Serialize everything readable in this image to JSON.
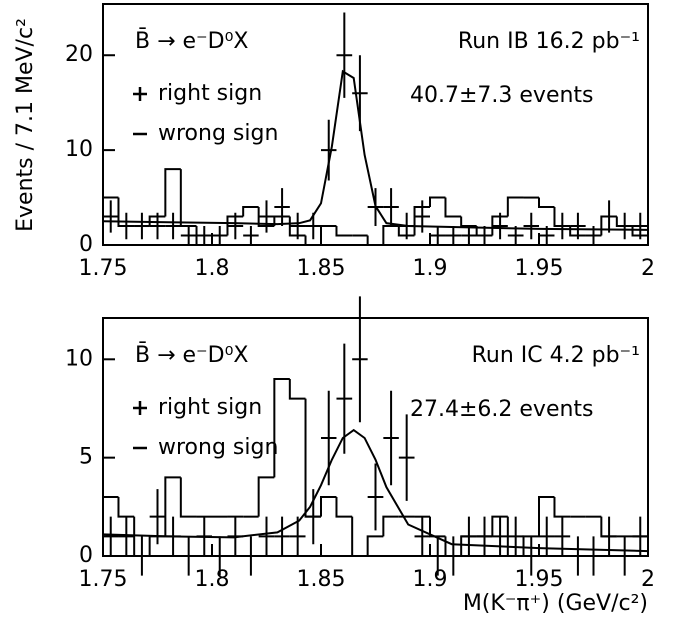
{
  "chart_data": [
    {
      "type": "histogram",
      "y_label": "Events / 7.1 MeV/c²",
      "annotations": [
        "B̄ → e⁻D⁰X",
        "Run IB 16.2 pb⁻¹",
        "40.7±7.3 events"
      ],
      "bins": [
        1.75,
        1.7571,
        1.7643,
        1.7714,
        1.7786,
        1.7857,
        1.7929,
        1.8,
        1.8071,
        1.8143,
        1.8214,
        1.8286,
        1.8357,
        1.8429,
        1.85,
        1.8571,
        1.8643,
        1.8714,
        1.8786,
        1.8857,
        1.8929,
        1.9,
        1.9071,
        1.9143,
        1.9214,
        1.9286,
        1.9357,
        1.9429,
        1.95,
        1.9571,
        1.9643,
        1.9714,
        1.9786,
        1.9857,
        1.9929,
        2.0
      ],
      "series": [
        {
          "name": "right sign",
          "color": "#000000",
          "style": "points",
          "values": [
            3,
            2,
            2,
            2,
            2,
            1,
            1,
            1,
            2,
            1,
            3,
            4,
            2,
            2,
            10,
            20,
            16,
            4,
            4,
            2,
            3,
            1,
            1,
            1,
            1,
            2,
            1,
            2,
            1,
            2,
            2,
            1,
            3,
            2,
            2
          ],
          "errors": [
            1.7,
            1.4,
            1.4,
            1.4,
            1.4,
            1,
            1,
            1,
            1.4,
            1,
            1.7,
            2,
            1.4,
            1.4,
            3.2,
            4.5,
            4,
            2,
            2,
            1.4,
            1.7,
            1,
            1,
            1,
            1,
            1.4,
            1,
            1.4,
            1,
            1.4,
            1.4,
            1,
            1.7,
            1.4,
            1.4
          ]
        },
        {
          "name": "wrong sign",
          "color": "#000000",
          "style": "step",
          "values": [
            5,
            2,
            2,
            3,
            8,
            2,
            0,
            1,
            3,
            4,
            2,
            3,
            1,
            0,
            2,
            1,
            1,
            0,
            2,
            1,
            4,
            5,
            3,
            2,
            1,
            3,
            5,
            5,
            4,
            2,
            1,
            1,
            3,
            2,
            1
          ]
        }
      ],
      "fit": {
        "x": [
          1.75,
          1.78,
          1.81,
          1.83,
          1.84,
          1.845,
          1.85,
          1.855,
          1.86,
          1.865,
          1.87,
          1.875,
          1.88,
          1.89,
          1.91,
          1.95,
          2.0
        ],
        "y": [
          2.5,
          2.4,
          2.3,
          2.2,
          2.3,
          2.6,
          4.4,
          10.4,
          18.3,
          17.6,
          9.5,
          4.1,
          2.3,
          2.0,
          1.9,
          1.7,
          1.6
        ]
      },
      "xlim": [
        1.75,
        2
      ],
      "xticks": [
        1.75,
        1.8,
        1.85,
        1.9,
        1.95,
        2
      ],
      "ylim": [
        0,
        25.4
      ],
      "yticks": [
        0,
        10,
        20
      ]
    },
    {
      "type": "histogram",
      "x_label": "M(K⁻π⁺) (GeV/c²)",
      "annotations": [
        "B̄ → e⁻D⁰X",
        "Run IC 4.2 pb⁻¹",
        "27.4±6.2 events"
      ],
      "bins": [
        1.75,
        1.7571,
        1.7643,
        1.7714,
        1.7786,
        1.7857,
        1.7929,
        1.8,
        1.8071,
        1.8143,
        1.8214,
        1.8286,
        1.8357,
        1.8429,
        1.85,
        1.8571,
        1.8643,
        1.8714,
        1.8786,
        1.8857,
        1.8929,
        1.9,
        1.9071,
        1.9143,
        1.9214,
        1.9286,
        1.9357,
        1.9429,
        1.95,
        1.9571,
        1.9643,
        1.9714,
        1.9786,
        1.9857,
        1.9929,
        2.0
      ],
      "series": [
        {
          "name": "right sign",
          "color": "#000000",
          "style": "points",
          "values": [
            1,
            1,
            0,
            2,
            1,
            0,
            1,
            0,
            1,
            0,
            1,
            1,
            1,
            2,
            6,
            8,
            10,
            3,
            6,
            5,
            1,
            0,
            0,
            1,
            1,
            1,
            1,
            0,
            1,
            1,
            0,
            0,
            1,
            0,
            1
          ],
          "errors": [
            1,
            1,
            1,
            1.4,
            1,
            1,
            1,
            1,
            1,
            1,
            1,
            1,
            1,
            1.4,
            2.4,
            2.8,
            3.2,
            1.7,
            2.4,
            2.2,
            1,
            1,
            1,
            1,
            1,
            1,
            1,
            1,
            1,
            1,
            1,
            1,
            1,
            1,
            1
          ]
        },
        {
          "name": "wrong sign",
          "color": "#000000",
          "style": "step",
          "values": [
            3,
            2,
            0,
            1,
            4,
            2,
            2,
            2,
            2,
            2,
            4,
            9,
            8,
            2,
            3,
            2,
            0,
            1,
            2,
            2,
            2,
            1,
            0,
            1,
            1,
            2,
            0,
            1,
            3,
            2,
            2,
            2,
            1,
            1,
            1
          ]
        }
      ],
      "fit": {
        "x": [
          1.75,
          1.78,
          1.81,
          1.83,
          1.84,
          1.845,
          1.85,
          1.855,
          1.86,
          1.865,
          1.87,
          1.875,
          1.88,
          1.89,
          1.91,
          1.95,
          2.0
        ],
        "y": [
          1.1,
          1.0,
          0.95,
          1.2,
          1.8,
          2.5,
          3.6,
          4.9,
          6.0,
          6.4,
          6.0,
          4.9,
          3.5,
          1.6,
          0.6,
          0.4,
          0.25
        ]
      },
      "xlim": [
        1.75,
        2
      ],
      "xticks": [
        1.75,
        1.8,
        1.85,
        1.9,
        1.95,
        2
      ],
      "ylim": [
        0,
        12.1
      ],
      "yticks": [
        0,
        5,
        10
      ]
    }
  ]
}
